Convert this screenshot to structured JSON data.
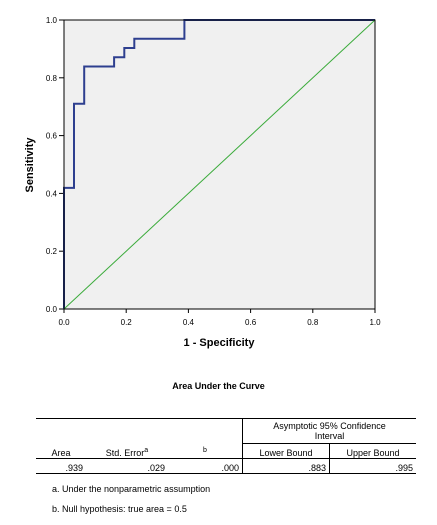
{
  "chart_data": {
    "type": "line",
    "xlabel": "1 - Specificity",
    "ylabel": "Sensitivity",
    "xlim": [
      0,
      1
    ],
    "ylim": [
      0,
      1
    ],
    "xticks": [
      "0.0",
      "0.2",
      "0.4",
      "0.6",
      "0.8",
      "1.0"
    ],
    "yticks": [
      "0.0",
      "0.2",
      "0.4",
      "0.6",
      "0.8",
      "1.0"
    ],
    "grid": false,
    "series": [
      {
        "color": "#2e3f8f",
        "x": [
          0.0,
          0.0,
          0.032,
          0.032,
          0.065,
          0.065,
          0.161,
          0.161,
          0.194,
          0.194,
          0.226,
          0.226,
          0.387,
          0.387,
          1.0
        ],
        "y": [
          0.0,
          0.419,
          0.419,
          0.71,
          0.71,
          0.839,
          0.839,
          0.871,
          0.871,
          0.903,
          0.903,
          0.935,
          0.935,
          1.0,
          1.0
        ]
      },
      {
        "color": "#3bab3b",
        "x": [
          0.0,
          1.0
        ],
        "y": [
          0.0,
          1.0
        ]
      }
    ]
  },
  "table": {
    "title": "Area Under the Curve",
    "group_header": "Asymptotic 95% Confidence Interval",
    "headers": {
      "area": "Area",
      "std_error": "Std. Error",
      "std_error_mark": "a",
      "sig_mark": "b",
      "lower": "Lower Bound",
      "upper": "Upper Bound"
    },
    "row": {
      "area": ".939",
      "std_error": ".029",
      "sig": ".000",
      "lower": ".883",
      "upper": ".995"
    },
    "footnotes": [
      "a. Under the nonparametric assumption",
      "b. Null hypothesis: true area = 0.5"
    ]
  }
}
